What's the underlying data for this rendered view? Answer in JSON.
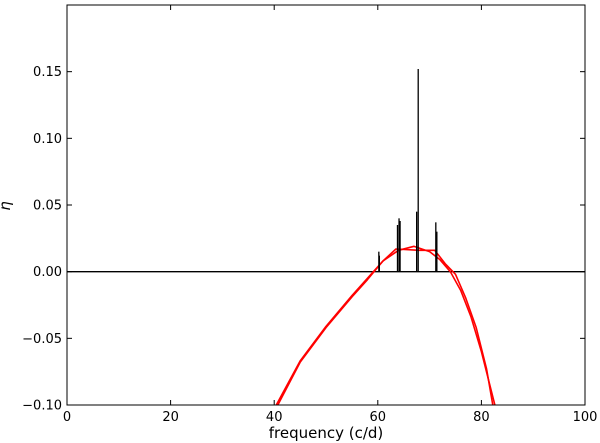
{
  "chart_data": {
    "type": "line",
    "title": "",
    "xlabel": "frequency (c/d)",
    "ylabel": "η",
    "xlim": [
      0,
      100
    ],
    "ylim": [
      -0.1,
      0.2
    ],
    "xticks": [
      0,
      20,
      40,
      60,
      80,
      100
    ],
    "xtick_labels": [
      "0",
      "20",
      "40",
      "60",
      "80",
      "100"
    ],
    "yticks": [
      -0.1,
      -0.05,
      0.0,
      0.05,
      0.1,
      0.15
    ],
    "ytick_labels": [
      "−0.10",
      "−0.05",
      "0.00",
      "0.05",
      "0.10",
      "0.15"
    ],
    "grid": false,
    "legend": "none",
    "zero_line": 0,
    "series": [
      {
        "style": "red-curve",
        "color": "#ff0000",
        "x": [
          40.4,
          45,
          50,
          55,
          58,
          61,
          64,
          67,
          70,
          72,
          74,
          76,
          78,
          80,
          82.6
        ],
        "y": [
          -0.1,
          -0.067,
          -0.041,
          -0.018,
          -0.005,
          0.008,
          0.016,
          0.019,
          0.015,
          0.009,
          0.0,
          -0.014,
          -0.034,
          -0.06,
          -0.1
        ]
      },
      {
        "style": "red-curve",
        "color": "#ff0000",
        "x": [
          40.7,
          45,
          50,
          55,
          58,
          61,
          63.5,
          68,
          71,
          73,
          75,
          77,
          79,
          81,
          82.2
        ],
        "y": [
          -0.1,
          -0.068,
          -0.042,
          -0.019,
          -0.006,
          0.008,
          0.017,
          0.016,
          0.016,
          0.006,
          -0.002,
          -0.02,
          -0.042,
          -0.073,
          -0.1
        ]
      },
      {
        "style": "vertical-impulses",
        "color": "#000000",
        "x": [
          60.2,
          60.3,
          63.8,
          64.1,
          64.3,
          67.5,
          67.8,
          71.2,
          71.4
        ],
        "y": [
          0.015,
          0.012,
          0.035,
          0.04,
          0.038,
          0.045,
          0.152,
          0.037,
          0.03
        ]
      }
    ]
  }
}
